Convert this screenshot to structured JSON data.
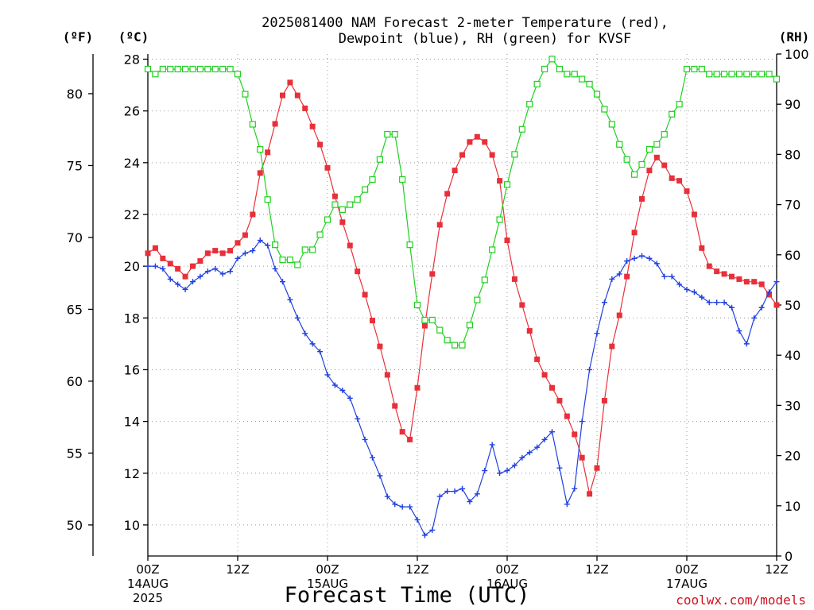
{
  "chart_data": {
    "type": "line",
    "title_line1": "2025081400 NAM Forecast 2-meter Temperature (red),",
    "title_line2": "Dewpoint (blue), RH (green) for KVSF",
    "xlabel": "Forecast Time (UTC)",
    "credit": "coolwx.com/models",
    "units": {
      "fahrenheit": "(ºF)",
      "celsius": "(ºC)",
      "rh": "(RH)"
    },
    "x_axis": {
      "range_hours": [
        0,
        84
      ],
      "ticks": [
        {
          "hour": 0,
          "label": "00Z",
          "sub1": "14AUG",
          "sub2": "2025"
        },
        {
          "hour": 12,
          "label": "12Z",
          "sub1": "",
          "sub2": ""
        },
        {
          "hour": 24,
          "label": "00Z",
          "sub1": "15AUG",
          "sub2": ""
        },
        {
          "hour": 36,
          "label": "12Z",
          "sub1": "",
          "sub2": ""
        },
        {
          "hour": 48,
          "label": "00Z",
          "sub1": "16AUG",
          "sub2": ""
        },
        {
          "hour": 60,
          "label": "12Z",
          "sub1": "",
          "sub2": ""
        },
        {
          "hour": 72,
          "label": "00Z",
          "sub1": "17AUG",
          "sub2": ""
        },
        {
          "hour": 84,
          "label": "12Z",
          "sub1": "",
          "sub2": ""
        }
      ]
    },
    "y_celsius": {
      "ylim": [
        8.8,
        28.2
      ],
      "ticks": [
        "10",
        "12",
        "14",
        "16",
        "18",
        "20",
        "22",
        "24",
        "26",
        "28"
      ]
    },
    "y_fahrenheit": {
      "ticks": [
        "50",
        "55",
        "60",
        "65",
        "70",
        "75",
        "80"
      ]
    },
    "y_rh": {
      "ylim": [
        0,
        100
      ],
      "ticks": [
        "0",
        "10",
        "20",
        "30",
        "40",
        "50",
        "60",
        "70",
        "80",
        "90",
        "100"
      ]
    },
    "series": [
      {
        "name": "Temperature",
        "unit": "C",
        "color": "#e8303a",
        "marker": "filled-square",
        "x": [
          0,
          1,
          2,
          3,
          4,
          5,
          6,
          7,
          8,
          9,
          10,
          11,
          12,
          13,
          14,
          15,
          16,
          17,
          18,
          19,
          20,
          21,
          22,
          23,
          24,
          25,
          26,
          27,
          28,
          29,
          30,
          31,
          32,
          33,
          34,
          35,
          36,
          37,
          38,
          39,
          40,
          41,
          42,
          43,
          44,
          45,
          46,
          47,
          48,
          49,
          50,
          51,
          52,
          53,
          54,
          55,
          56,
          57,
          58,
          59,
          60,
          61,
          62,
          63,
          64,
          65,
          66,
          67,
          68,
          69,
          70,
          71,
          72,
          73,
          74,
          75,
          76,
          77,
          78,
          79,
          80,
          81,
          82,
          83,
          84
        ],
        "y": [
          20.5,
          20.7,
          20.3,
          20.1,
          19.9,
          19.6,
          20.0,
          20.2,
          20.5,
          20.6,
          20.5,
          20.6,
          20.9,
          21.2,
          22.0,
          23.6,
          24.4,
          25.5,
          26.6,
          27.1,
          26.6,
          26.1,
          25.4,
          24.7,
          23.8,
          22.7,
          21.7,
          20.8,
          19.8,
          18.9,
          17.9,
          16.9,
          15.8,
          14.6,
          13.6,
          13.3,
          15.3,
          17.7,
          19.7,
          21.6,
          22.8,
          23.7,
          24.3,
          24.8,
          25.0,
          24.8,
          24.3,
          23.3,
          21.0,
          19.5,
          18.5,
          17.5,
          16.4,
          15.8,
          15.3,
          14.8,
          14.2,
          13.5,
          12.6,
          11.2,
          12.2,
          14.8,
          16.9,
          18.1,
          19.6,
          21.3,
          22.6,
          23.7,
          24.2,
          23.9,
          23.4,
          23.3,
          22.9,
          22.0,
          20.7,
          20.0,
          19.8,
          19.7,
          19.6,
          19.5,
          19.4,
          19.4,
          19.3,
          18.9,
          18.5
        ]
      },
      {
        "name": "Dewpoint",
        "unit": "C",
        "color": "#2040e0",
        "marker": "plus",
        "x": [
          0,
          1,
          2,
          3,
          4,
          5,
          6,
          7,
          8,
          9,
          10,
          11,
          12,
          13,
          14,
          15,
          16,
          17,
          18,
          19,
          20,
          21,
          22,
          23,
          24,
          25,
          26,
          27,
          28,
          29,
          30,
          31,
          32,
          33,
          34,
          35,
          36,
          37,
          38,
          39,
          40,
          41,
          42,
          43,
          44,
          45,
          46,
          47,
          48,
          49,
          50,
          51,
          52,
          53,
          54,
          55,
          56,
          57,
          58,
          59,
          60,
          61,
          62,
          63,
          64,
          65,
          66,
          67,
          68,
          69,
          70,
          71,
          72,
          73,
          74,
          75,
          76,
          77,
          78,
          79,
          80,
          81,
          82,
          83,
          84
        ],
        "y": [
          20.0,
          20.0,
          19.9,
          19.5,
          19.3,
          19.1,
          19.4,
          19.6,
          19.8,
          19.9,
          19.7,
          19.8,
          20.3,
          20.5,
          20.6,
          21.0,
          20.8,
          19.9,
          19.4,
          18.7,
          18.0,
          17.4,
          17.0,
          16.7,
          15.8,
          15.4,
          15.2,
          14.9,
          14.1,
          13.3,
          12.6,
          11.9,
          11.1,
          10.8,
          10.7,
          10.7,
          10.2,
          9.6,
          9.8,
          11.1,
          11.3,
          11.3,
          11.4,
          10.9,
          11.2,
          12.1,
          13.1,
          12.0,
          12.1,
          12.3,
          12.6,
          12.8,
          13.0,
          13.3,
          13.6,
          12.2,
          10.8,
          11.4,
          14.0,
          16.0,
          17.4,
          18.6,
          19.5,
          19.7,
          20.2,
          20.3,
          20.4,
          20.3,
          20.1,
          19.6,
          19.6,
          19.3,
          19.1,
          19.0,
          18.8,
          18.6,
          18.6,
          18.6,
          18.4,
          17.5,
          17.0,
          18.0,
          18.4,
          19.0,
          19.4
        ]
      },
      {
        "name": "RH",
        "unit": "%",
        "color": "#20d020",
        "marker": "open-square",
        "x": [
          0,
          1,
          2,
          3,
          4,
          5,
          6,
          7,
          8,
          9,
          10,
          11,
          12,
          13,
          14,
          15,
          16,
          17,
          18,
          19,
          20,
          21,
          22,
          23,
          24,
          25,
          26,
          27,
          28,
          29,
          30,
          31,
          32,
          33,
          34,
          35,
          36,
          37,
          38,
          39,
          40,
          41,
          42,
          43,
          44,
          45,
          46,
          47,
          48,
          49,
          50,
          51,
          52,
          53,
          54,
          55,
          56,
          57,
          58,
          59,
          60,
          61,
          62,
          63,
          64,
          65,
          66,
          67,
          68,
          69,
          70,
          71,
          72,
          73,
          74,
          75,
          76,
          77,
          78,
          79,
          80,
          81,
          82,
          83,
          84
        ],
        "y": [
          97,
          96,
          97,
          97,
          97,
          97,
          97,
          97,
          97,
          97,
          97,
          97,
          96,
          92,
          86,
          81,
          71,
          62,
          59,
          59,
          58,
          61,
          61,
          64,
          67,
          70,
          69,
          70,
          71,
          73,
          75,
          79,
          84,
          84,
          75,
          62,
          50,
          47,
          47,
          45,
          43,
          42,
          42,
          46,
          51,
          55,
          61,
          67,
          74,
          80,
          85,
          90,
          94,
          97,
          99,
          97,
          96,
          96,
          95,
          94,
          92,
          89,
          86,
          82,
          79,
          76,
          78,
          81,
          82,
          84,
          88,
          90,
          97,
          97,
          97,
          96,
          96,
          96,
          96,
          96,
          96,
          96,
          96,
          96,
          95
        ]
      }
    ]
  }
}
